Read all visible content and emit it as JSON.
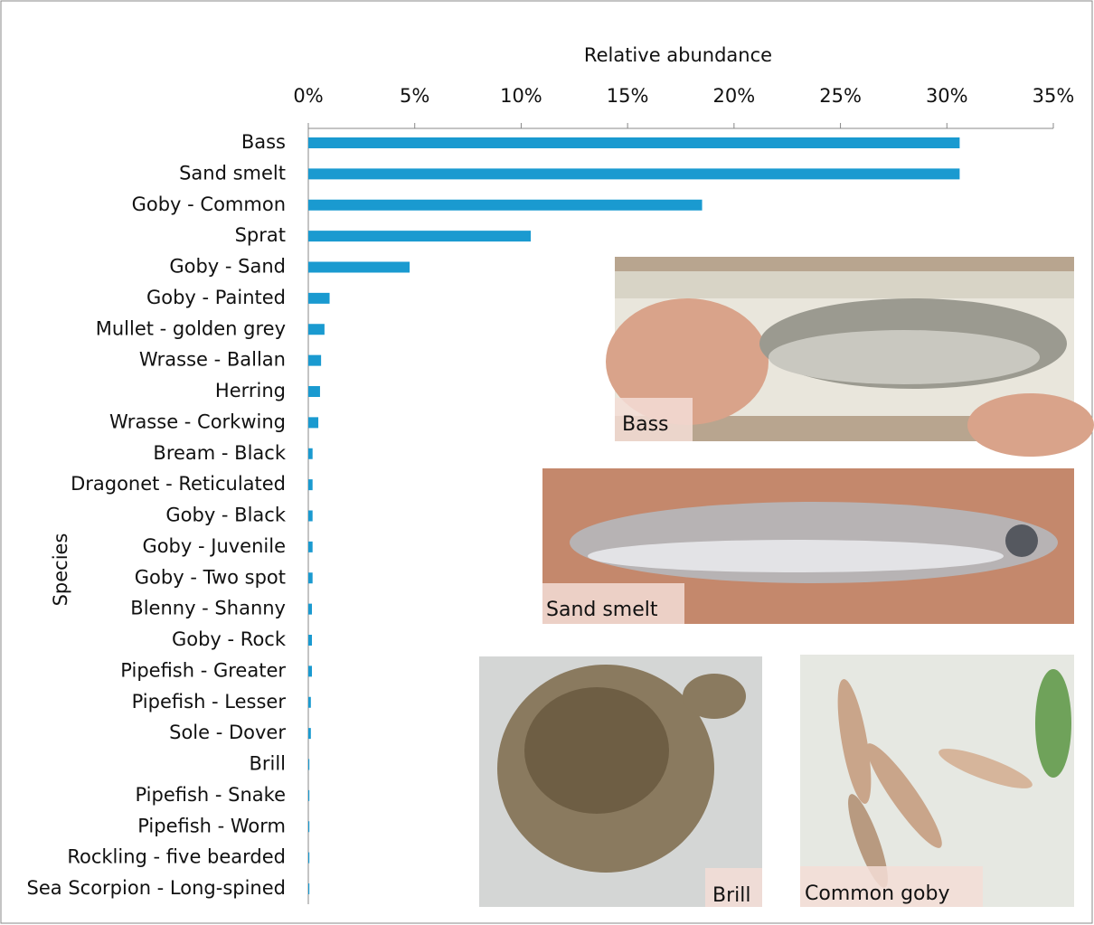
{
  "chart_data": {
    "type": "barh",
    "x_label": "Relative abundance",
    "y_label": "Species",
    "categories": [
      "Bass",
      "Sand smelt",
      "Goby - Common",
      "Sprat",
      "Goby - Sand",
      "Goby - Painted",
      "Mullet - golden grey",
      "Wrasse - Ballan",
      "Herring",
      "Wrasse - Corkwing",
      "Bream - Black",
      "Dragonet - Reticulated",
      "Goby - Black",
      "Goby - Juvenile",
      "Goby - Two spot",
      "Blenny - Shanny",
      "Goby - Rock",
      "Pipefish - Greater",
      "Pipefish - Lesser",
      "Sole - Dover",
      "Brill",
      "Pipefish - Snake",
      "Pipefish - Worm",
      "Rockling - five bearded",
      "Sea Scorpion - Long-spined"
    ],
    "values": [
      30.6,
      30.6,
      18.5,
      10.45,
      4.76,
      1.0,
      0.76,
      0.6,
      0.55,
      0.47,
      0.2,
      0.2,
      0.2,
      0.2,
      0.2,
      0.17,
      0.17,
      0.17,
      0.12,
      0.12,
      0.05,
      0.05,
      0.05,
      0.05,
      0.05
    ],
    "color": "#1a9ad0",
    "xlim": [
      0,
      35
    ],
    "xticks": [
      {
        "value": 0,
        "label": "0%"
      },
      {
        "value": 5,
        "label": "5%"
      },
      {
        "value": 10,
        "label": "10%"
      },
      {
        "value": 15,
        "label": "15%"
      },
      {
        "value": 20,
        "label": "20%"
      },
      {
        "value": 25,
        "label": "25%"
      },
      {
        "value": 30,
        "label": "30%"
      },
      {
        "value": 35,
        "label": "35%"
      }
    ],
    "annotations": [
      "Bass",
      "Sand smelt",
      "Brill",
      "Common goby"
    ]
  }
}
